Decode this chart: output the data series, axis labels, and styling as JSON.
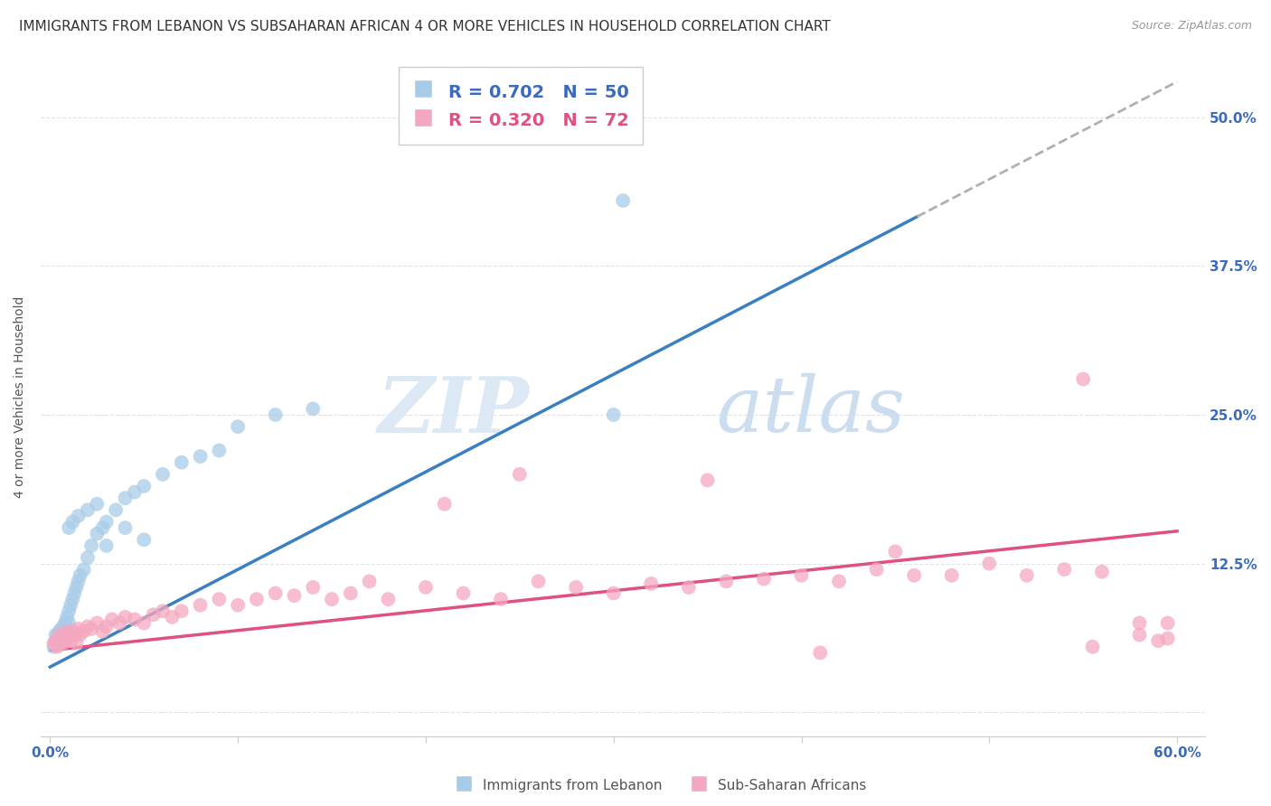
{
  "title": "IMMIGRANTS FROM LEBANON VS SUBSAHARAN AFRICAN 4 OR MORE VEHICLES IN HOUSEHOLD CORRELATION CHART",
  "source": "Source: ZipAtlas.com",
  "ylabel": "4 or more Vehicles in Household",
  "xlim": [
    0.0,
    0.6
  ],
  "ylim": [
    -0.02,
    0.55
  ],
  "yticks": [
    0.0,
    0.125,
    0.25,
    0.375,
    0.5
  ],
  "xticks": [
    0.0,
    0.1,
    0.2,
    0.3,
    0.4,
    0.5,
    0.6
  ],
  "lebanon_R": 0.702,
  "lebanon_N": 50,
  "subsaharan_R": 0.32,
  "subsaharan_N": 72,
  "lebanon_color": "#a8cce8",
  "subsaharan_color": "#f4a8c0",
  "lebanon_line_color": "#3a7fc1",
  "subsaharan_line_color": "#e05080",
  "watermark_color": "#dce8f4",
  "background_color": "#ffffff",
  "grid_color": "#e0e0e0",
  "title_fontsize": 11,
  "axis_label_fontsize": 10,
  "tick_fontsize": 11,
  "legend_fontsize": 14,
  "lebanon_x": [
    0.002,
    0.003,
    0.003,
    0.004,
    0.004,
    0.005,
    0.005,
    0.006,
    0.006,
    0.007,
    0.007,
    0.008,
    0.008,
    0.009,
    0.009,
    0.01,
    0.01,
    0.011,
    0.012,
    0.013,
    0.014,
    0.015,
    0.016,
    0.018,
    0.02,
    0.022,
    0.025,
    0.028,
    0.03,
    0.035,
    0.04,
    0.045,
    0.05,
    0.06,
    0.07,
    0.08,
    0.09,
    0.1,
    0.12,
    0.14,
    0.01,
    0.012,
    0.015,
    0.02,
    0.025,
    0.03,
    0.04,
    0.05,
    0.305,
    0.3
  ],
  "lebanon_y": [
    0.055,
    0.06,
    0.065,
    0.06,
    0.065,
    0.058,
    0.068,
    0.062,
    0.07,
    0.065,
    0.072,
    0.068,
    0.075,
    0.07,
    0.08,
    0.075,
    0.085,
    0.09,
    0.095,
    0.1,
    0.105,
    0.11,
    0.115,
    0.12,
    0.13,
    0.14,
    0.15,
    0.155,
    0.16,
    0.17,
    0.18,
    0.185,
    0.19,
    0.2,
    0.21,
    0.215,
    0.22,
    0.24,
    0.25,
    0.255,
    0.155,
    0.16,
    0.165,
    0.17,
    0.175,
    0.14,
    0.155,
    0.145,
    0.43,
    0.25
  ],
  "subsaharan_x": [
    0.002,
    0.003,
    0.004,
    0.005,
    0.006,
    0.007,
    0.008,
    0.009,
    0.01,
    0.011,
    0.012,
    0.013,
    0.014,
    0.015,
    0.016,
    0.018,
    0.02,
    0.022,
    0.025,
    0.028,
    0.03,
    0.033,
    0.037,
    0.04,
    0.045,
    0.05,
    0.055,
    0.06,
    0.065,
    0.07,
    0.08,
    0.09,
    0.1,
    0.11,
    0.12,
    0.13,
    0.14,
    0.15,
    0.16,
    0.17,
    0.18,
    0.2,
    0.22,
    0.24,
    0.26,
    0.28,
    0.3,
    0.32,
    0.34,
    0.36,
    0.38,
    0.4,
    0.42,
    0.44,
    0.46,
    0.48,
    0.5,
    0.52,
    0.54,
    0.56,
    0.58,
    0.595,
    0.21,
    0.25,
    0.35,
    0.45,
    0.55,
    0.41,
    0.555,
    0.59,
    0.58,
    0.595
  ],
  "subsaharan_y": [
    0.058,
    0.06,
    0.055,
    0.065,
    0.06,
    0.058,
    0.068,
    0.062,
    0.065,
    0.06,
    0.068,
    0.065,
    0.058,
    0.07,
    0.065,
    0.068,
    0.072,
    0.07,
    0.075,
    0.068,
    0.072,
    0.078,
    0.075,
    0.08,
    0.078,
    0.075,
    0.082,
    0.085,
    0.08,
    0.085,
    0.09,
    0.095,
    0.09,
    0.095,
    0.1,
    0.098,
    0.105,
    0.095,
    0.1,
    0.11,
    0.095,
    0.105,
    0.1,
    0.095,
    0.11,
    0.105,
    0.1,
    0.108,
    0.105,
    0.11,
    0.112,
    0.115,
    0.11,
    0.12,
    0.115,
    0.115,
    0.125,
    0.115,
    0.12,
    0.118,
    0.075,
    0.075,
    0.175,
    0.2,
    0.195,
    0.135,
    0.28,
    0.05,
    0.055,
    0.06,
    0.065,
    0.062
  ]
}
